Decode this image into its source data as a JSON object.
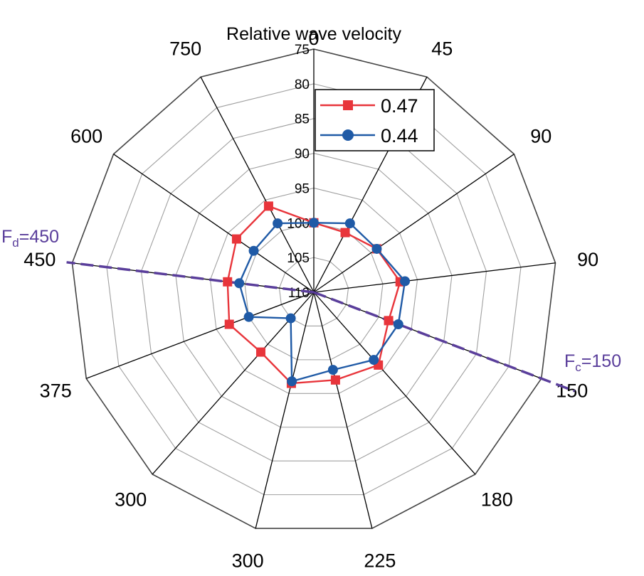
{
  "chart_data": {
    "type": "radar",
    "title": "Relative wave velocity",
    "categories": [
      "0",
      "45",
      "90",
      "90",
      "150",
      "180",
      "225",
      "300",
      "300",
      "375",
      "450",
      "600",
      "750"
    ],
    "radial_ticks": [
      75,
      80,
      85,
      90,
      95,
      100,
      105,
      110
    ],
    "rlim": [
      75,
      110
    ],
    "inverted_radial": true,
    "series": [
      {
        "name": "0.47",
        "color": "#e8353b",
        "marker": "square",
        "values": [
          100,
          100.3,
          99,
          97.5,
          98.5,
          96,
          97,
          96.5,
          98.5,
          97,
          97.5,
          96.5,
          96
        ]
      },
      {
        "name": "0.44",
        "color": "#1f5aa6",
        "marker": "circle",
        "values": [
          100,
          98.8,
          99,
          96.8,
          97,
          97,
          98.5,
          96.8,
          105,
          100,
          99.2,
          99.5,
          98.8
        ]
      }
    ],
    "annotations": [
      {
        "label_main": "F",
        "label_sub": "d",
        "label_tail": "=450",
        "direction_category": 10,
        "color": "#5a3e9b"
      },
      {
        "label_main": "F",
        "label_sub": "c",
        "label_tail": "=150",
        "direction_category": 4,
        "color": "#5a3e9b"
      }
    ],
    "legend_position": "top-right-inside"
  }
}
